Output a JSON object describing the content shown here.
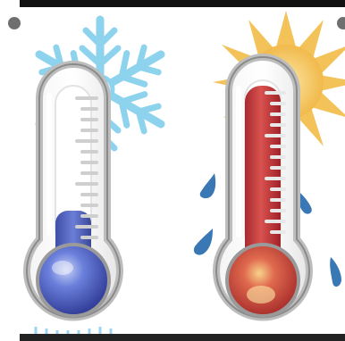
{
  "colors": {
    "top_bar": "#111111",
    "cold_mercury": "#4a5cc0",
    "hot_mercury": "#c8333a",
    "snowflake": "#8ed3ee",
    "sun": "#f3c35a",
    "droplet": "#3a78b5",
    "frame": "#c9c9c9"
  },
  "cold_thermometer": {
    "fill_level": 0.2
  },
  "hot_thermometer": {
    "fill_level": 0.88
  },
  "icons": {
    "cold": "snowflake-icon",
    "hot": "sun-icon",
    "drops": "water-droplet-icon"
  }
}
